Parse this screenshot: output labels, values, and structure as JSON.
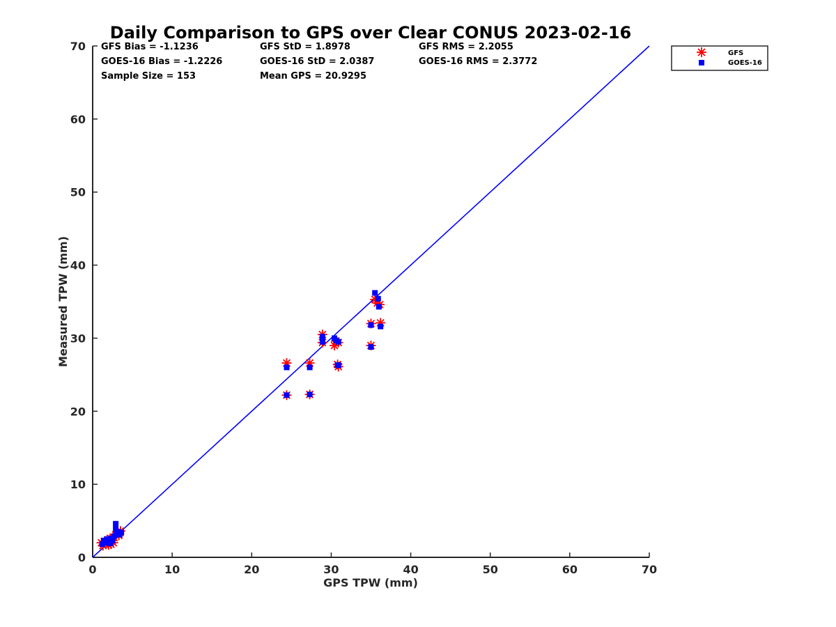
{
  "chart_data": {
    "type": "scatter",
    "title": "Daily Comparison to GPS over Clear CONUS 2023-02-16",
    "xlabel": "GPS TPW (mm)",
    "ylabel": "Measured TPW (mm)",
    "xlim": [
      0,
      70
    ],
    "ylim": [
      0,
      70
    ],
    "xticks": [
      "0",
      "10",
      "20",
      "30",
      "40",
      "50",
      "60",
      "70"
    ],
    "yticks": [
      "0",
      "10",
      "20",
      "30",
      "40",
      "50",
      "60",
      "70"
    ],
    "grid": false,
    "legend_position": "outside-top-right",
    "stats": [
      [
        "GFS Bias = -1.1236",
        "GFS StD = 1.8978",
        "GFS RMS = 2.2055"
      ],
      [
        "GOES-16 Bias = -1.2226",
        "GOES-16 StD = 2.0387",
        "GOES-16 RMS = 2.3772"
      ],
      [
        "Sample Size = 153",
        "Mean GPS = 20.9295"
      ]
    ],
    "reference_line": {
      "label": "1:1",
      "x": [
        0,
        70
      ],
      "y": [
        0,
        70
      ],
      "color": "#0000ff"
    },
    "series": [
      {
        "name": "GFS",
        "marker": "asterisk",
        "color": "#ff0000",
        "points": [
          [
            1.1,
            2.0
          ],
          [
            1.3,
            1.6
          ],
          [
            1.5,
            2.2
          ],
          [
            1.7,
            1.9
          ],
          [
            1.9,
            2.4
          ],
          [
            2.0,
            1.7
          ],
          [
            2.1,
            2.1
          ],
          [
            2.2,
            2.6
          ],
          [
            2.3,
            1.8
          ],
          [
            2.4,
            2.3
          ],
          [
            2.6,
            2.0
          ],
          [
            2.7,
            2.7
          ],
          [
            2.9,
            3.1
          ],
          [
            3.1,
            3.4
          ],
          [
            3.3,
            3.0
          ],
          [
            3.5,
            3.6
          ],
          [
            24.4,
            26.6
          ],
          [
            24.4,
            22.2
          ],
          [
            27.3,
            26.6
          ],
          [
            27.3,
            22.3
          ],
          [
            28.9,
            30.5
          ],
          [
            28.9,
            29.4
          ],
          [
            30.4,
            29.0
          ],
          [
            30.6,
            29.6
          ],
          [
            30.9,
            29.4
          ],
          [
            30.8,
            26.4
          ],
          [
            30.9,
            26.1
          ],
          [
            35.0,
            32.0
          ],
          [
            35.0,
            29.0
          ],
          [
            35.5,
            35.3
          ],
          [
            35.8,
            34.8
          ],
          [
            36.1,
            34.6
          ],
          [
            36.2,
            32.1
          ]
        ]
      },
      {
        "name": "GOES-16",
        "marker": "square",
        "color": "#0000ff",
        "points": [
          [
            1.2,
            1.8
          ],
          [
            1.4,
            2.3
          ],
          [
            1.6,
            2.0
          ],
          [
            1.8,
            2.5
          ],
          [
            2.0,
            2.2
          ],
          [
            2.2,
            1.9
          ],
          [
            2.3,
            2.6
          ],
          [
            2.5,
            2.3
          ],
          [
            2.7,
            2.9
          ],
          [
            2.9,
            4.6
          ],
          [
            2.9,
            3.9
          ],
          [
            3.0,
            3.2
          ],
          [
            3.2,
            3.5
          ],
          [
            3.4,
            3.1
          ],
          [
            3.6,
            3.4
          ],
          [
            24.4,
            26.0
          ],
          [
            24.4,
            22.2
          ],
          [
            27.3,
            26.0
          ],
          [
            27.3,
            22.3
          ],
          [
            28.9,
            30.2
          ],
          [
            28.9,
            29.5
          ],
          [
            30.4,
            30.0
          ],
          [
            30.6,
            29.7
          ],
          [
            30.9,
            29.5
          ],
          [
            30.8,
            26.3
          ],
          [
            30.9,
            26.3
          ],
          [
            35.0,
            31.8
          ],
          [
            35.0,
            28.8
          ],
          [
            35.5,
            36.2
          ],
          [
            35.9,
            35.4
          ],
          [
            36.0,
            34.3
          ],
          [
            36.2,
            31.6
          ]
        ]
      }
    ]
  }
}
